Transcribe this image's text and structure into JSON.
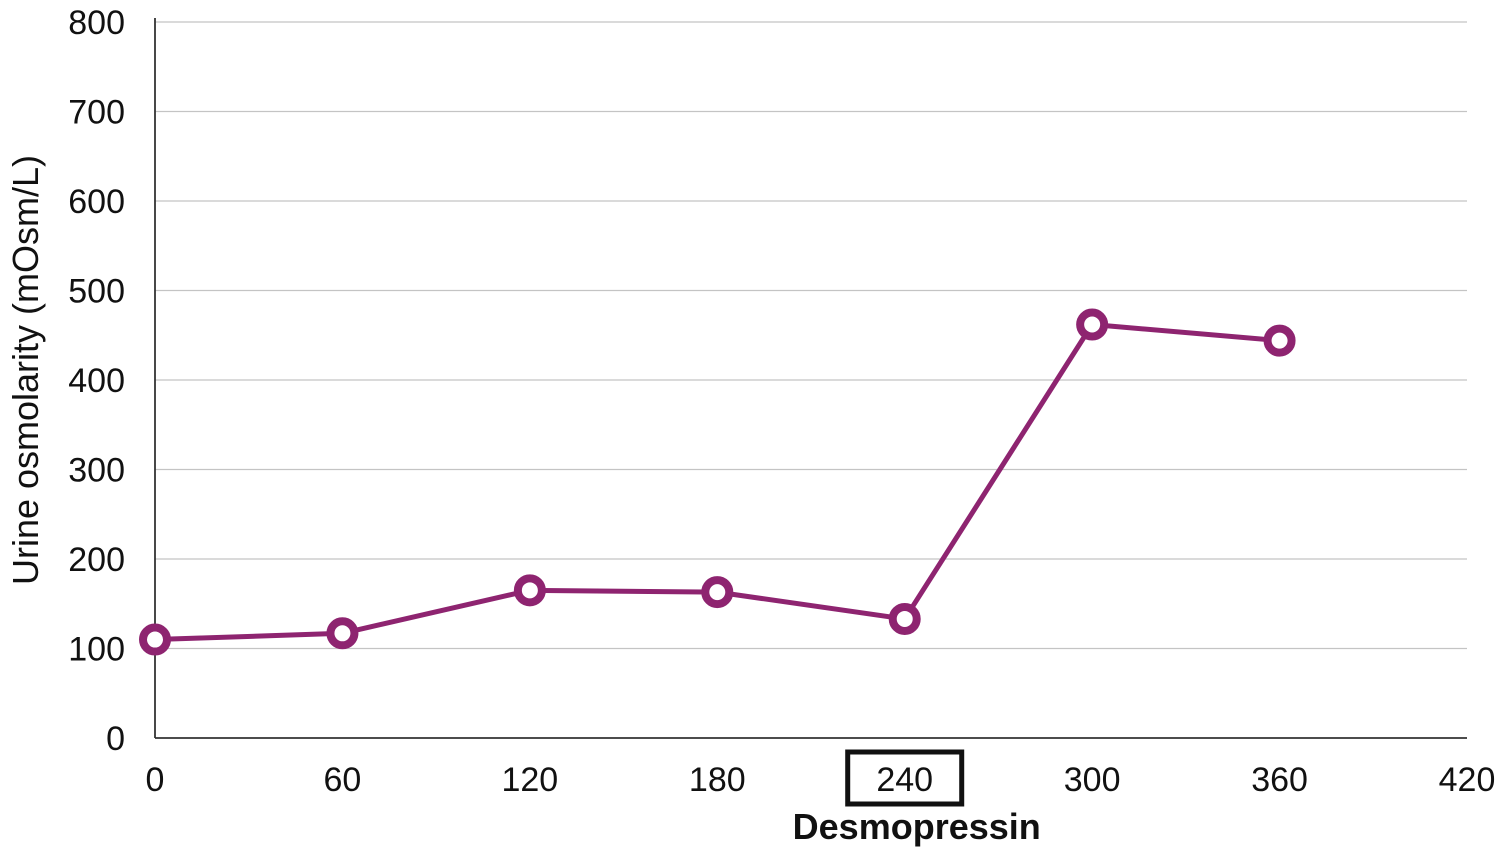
{
  "chart_data": {
    "type": "line",
    "title": "",
    "xlabel": "",
    "ylabel": "Urine osmolarity (mOsm/L)",
    "xlim": [
      0,
      420
    ],
    "ylim": [
      0,
      800
    ],
    "x_ticks": [
      "0",
      "60",
      "120",
      "180",
      "240",
      "300",
      "360",
      "420"
    ],
    "y_ticks": [
      "0",
      "100",
      "200",
      "300",
      "400",
      "500",
      "600",
      "700",
      "800"
    ],
    "grid": "horizontal",
    "series": [
      {
        "color": "#8e2470",
        "x": [
          0,
          60,
          120,
          180,
          240,
          300,
          360
        ],
        "y": [
          110,
          117,
          165,
          163,
          133,
          462,
          444
        ]
      }
    ],
    "annotations": {
      "boxed_tick": "240",
      "text": "Desmopressin"
    }
  }
}
